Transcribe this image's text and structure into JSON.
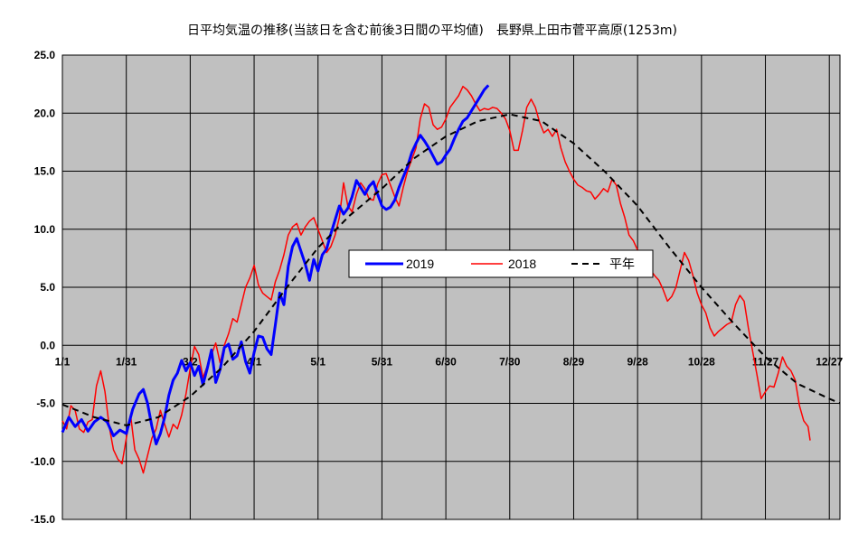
{
  "chart_data": {
    "type": "line",
    "title": "日平均気温の推移(当該日を含む前後3日間の平均値)　長野県上田市菅平高原(1253m)",
    "xlabel": "",
    "ylabel": "",
    "ylim": [
      -15,
      25
    ],
    "xlim": [
      1,
      366
    ],
    "yticks": [
      "25.0",
      "20.0",
      "15.0",
      "10.0",
      "5.0",
      "0.0",
      "-5.0",
      "-10.0",
      "-15.0"
    ],
    "xticks": [
      {
        "day": 1,
        "label": "1/1"
      },
      {
        "day": 31,
        "label": "1/31"
      },
      {
        "day": 61,
        "label": "3/2"
      },
      {
        "day": 91,
        "label": "4/1"
      },
      {
        "day": 121,
        "label": "5/1"
      },
      {
        "day": 151,
        "label": "5/31"
      },
      {
        "day": 181,
        "label": "6/30"
      },
      {
        "day": 211,
        "label": "7/30"
      },
      {
        "day": 241,
        "label": "8/29"
      },
      {
        "day": 271,
        "label": "9/28"
      },
      {
        "day": 301,
        "label": "10/28"
      },
      {
        "day": 331,
        "label": "11/27"
      },
      {
        "day": 361,
        "label": "12/27"
      }
    ],
    "grid": true,
    "legend_position": "center",
    "series": [
      {
        "name": "2019",
        "color": "#0000ff",
        "style": "solid",
        "points": [
          [
            1,
            -7.5
          ],
          [
            4,
            -6.2
          ],
          [
            7,
            -7.0
          ],
          [
            10,
            -6.4
          ],
          [
            13,
            -7.4
          ],
          [
            16,
            -6.6
          ],
          [
            19,
            -6.2
          ],
          [
            22,
            -6.6
          ],
          [
            25,
            -7.8
          ],
          [
            28,
            -7.3
          ],
          [
            31,
            -7.6
          ],
          [
            34,
            -5.5
          ],
          [
            37,
            -4.2
          ],
          [
            39,
            -3.8
          ],
          [
            41,
            -5.0
          ],
          [
            43,
            -7.0
          ],
          [
            45,
            -8.5
          ],
          [
            47,
            -7.6
          ],
          [
            49,
            -6.2
          ],
          [
            51,
            -4.3
          ],
          [
            53,
            -3.0
          ],
          [
            55,
            -2.4
          ],
          [
            57,
            -1.3
          ],
          [
            59,
            -2.2
          ],
          [
            61,
            -1.5
          ],
          [
            63,
            -2.6
          ],
          [
            65,
            -1.8
          ],
          [
            67,
            -3.4
          ],
          [
            69,
            -2.0
          ],
          [
            71,
            -0.4
          ],
          [
            73,
            -3.2
          ],
          [
            75,
            -2.1
          ],
          [
            77,
            -0.2
          ],
          [
            79,
            0.1
          ],
          [
            81,
            -1.2
          ],
          [
            83,
            -0.9
          ],
          [
            85,
            0.3
          ],
          [
            87,
            -1.4
          ],
          [
            89,
            -2.4
          ],
          [
            91,
            -0.6
          ],
          [
            93,
            0.8
          ],
          [
            95,
            0.7
          ],
          [
            97,
            -0.3
          ],
          [
            99,
            -0.8
          ],
          [
            101,
            1.8
          ],
          [
            103,
            4.5
          ],
          [
            105,
            3.5
          ],
          [
            107,
            6.8
          ],
          [
            109,
            8.5
          ],
          [
            111,
            9.2
          ],
          [
            113,
            8.1
          ],
          [
            115,
            7.0
          ],
          [
            117,
            5.6
          ],
          [
            119,
            7.4
          ],
          [
            121,
            6.4
          ],
          [
            123,
            7.8
          ],
          [
            125,
            8.3
          ],
          [
            127,
            9.6
          ],
          [
            129,
            10.8
          ],
          [
            131,
            12.0
          ],
          [
            133,
            11.3
          ],
          [
            135,
            11.8
          ],
          [
            137,
            12.8
          ],
          [
            139,
            14.2
          ],
          [
            141,
            13.6
          ],
          [
            143,
            13.0
          ],
          [
            145,
            13.7
          ],
          [
            147,
            14.1
          ],
          [
            149,
            13.0
          ],
          [
            151,
            12.0
          ],
          [
            153,
            11.7
          ],
          [
            155,
            11.9
          ],
          [
            157,
            12.5
          ],
          [
            159,
            13.6
          ],
          [
            161,
            14.5
          ],
          [
            163,
            15.4
          ],
          [
            165,
            16.6
          ],
          [
            167,
            17.4
          ],
          [
            169,
            18.1
          ],
          [
            171,
            17.6
          ],
          [
            173,
            17.0
          ],
          [
            175,
            16.3
          ],
          [
            177,
            15.6
          ],
          [
            179,
            15.8
          ],
          [
            181,
            16.4
          ],
          [
            183,
            16.9
          ],
          [
            185,
            17.8
          ],
          [
            187,
            18.6
          ],
          [
            189,
            19.3
          ],
          [
            191,
            19.6
          ],
          [
            193,
            20.2
          ],
          [
            195,
            20.8
          ],
          [
            197,
            21.4
          ],
          [
            199,
            22.0
          ],
          [
            201,
            22.4
          ]
        ]
      },
      {
        "name": "2018",
        "color": "#ff0000",
        "style": "solid",
        "points": [
          [
            1,
            -6.5
          ],
          [
            3,
            -7.2
          ],
          [
            5,
            -5.2
          ],
          [
            7,
            -5.6
          ],
          [
            9,
            -7.2
          ],
          [
            11,
            -7.5
          ],
          [
            13,
            -6.6
          ],
          [
            15,
            -6.4
          ],
          [
            17,
            -3.5
          ],
          [
            19,
            -2.2
          ],
          [
            21,
            -4.0
          ],
          [
            23,
            -7.0
          ],
          [
            25,
            -9.0
          ],
          [
            27,
            -9.8
          ],
          [
            29,
            -10.2
          ],
          [
            31,
            -8.0
          ],
          [
            33,
            -6.0
          ],
          [
            35,
            -9.0
          ],
          [
            37,
            -9.8
          ],
          [
            39,
            -11.0
          ],
          [
            41,
            -9.5
          ],
          [
            43,
            -8.0
          ],
          [
            45,
            -7.2
          ],
          [
            47,
            -5.6
          ],
          [
            49,
            -6.8
          ],
          [
            51,
            -7.9
          ],
          [
            53,
            -6.8
          ],
          [
            55,
            -7.2
          ],
          [
            57,
            -6.0
          ],
          [
            59,
            -4.2
          ],
          [
            61,
            -2.0
          ],
          [
            63,
            -0.1
          ],
          [
            65,
            -0.8
          ],
          [
            67,
            -2.8
          ],
          [
            69,
            -1.8
          ],
          [
            71,
            -0.8
          ],
          [
            73,
            0.2
          ],
          [
            75,
            -1.5
          ],
          [
            77,
            0.0
          ],
          [
            79,
            1.0
          ],
          [
            81,
            2.3
          ],
          [
            83,
            2.0
          ],
          [
            85,
            3.5
          ],
          [
            87,
            5.0
          ],
          [
            89,
            5.8
          ],
          [
            91,
            6.9
          ],
          [
            93,
            5.2
          ],
          [
            95,
            4.5
          ],
          [
            97,
            4.2
          ],
          [
            99,
            3.9
          ],
          [
            101,
            5.5
          ],
          [
            103,
            6.5
          ],
          [
            105,
            7.8
          ],
          [
            107,
            9.5
          ],
          [
            109,
            10.2
          ],
          [
            111,
            10.5
          ],
          [
            113,
            9.5
          ],
          [
            115,
            10.2
          ],
          [
            117,
            10.7
          ],
          [
            119,
            11.0
          ],
          [
            121,
            10.0
          ],
          [
            123,
            9.0
          ],
          [
            125,
            8.0
          ],
          [
            127,
            8.5
          ],
          [
            129,
            9.5
          ],
          [
            131,
            11.0
          ],
          [
            133,
            14.0
          ],
          [
            135,
            12.0
          ],
          [
            137,
            11.5
          ],
          [
            139,
            13.0
          ],
          [
            141,
            14.0
          ],
          [
            143,
            13.5
          ],
          [
            145,
            12.6
          ],
          [
            147,
            12.5
          ],
          [
            149,
            13.9
          ],
          [
            151,
            14.7
          ],
          [
            153,
            14.8
          ],
          [
            155,
            13.8
          ],
          [
            157,
            12.8
          ],
          [
            159,
            12.0
          ],
          [
            161,
            13.6
          ],
          [
            163,
            15.0
          ],
          [
            165,
            16.0
          ],
          [
            167,
            17.0
          ],
          [
            169,
            19.5
          ],
          [
            171,
            20.8
          ],
          [
            173,
            20.5
          ],
          [
            175,
            19.0
          ],
          [
            177,
            18.6
          ],
          [
            179,
            18.8
          ],
          [
            181,
            19.5
          ],
          [
            183,
            20.5
          ],
          [
            185,
            21.0
          ],
          [
            187,
            21.5
          ],
          [
            189,
            22.3
          ],
          [
            191,
            22.0
          ],
          [
            193,
            21.5
          ],
          [
            195,
            20.8
          ],
          [
            197,
            20.2
          ],
          [
            199,
            20.4
          ],
          [
            201,
            20.3
          ],
          [
            203,
            20.5
          ],
          [
            205,
            20.4
          ],
          [
            207,
            20.0
          ],
          [
            209,
            19.5
          ],
          [
            211,
            18.5
          ],
          [
            213,
            16.8
          ],
          [
            215,
            16.8
          ],
          [
            217,
            18.5
          ],
          [
            219,
            20.5
          ],
          [
            221,
            21.2
          ],
          [
            223,
            20.5
          ],
          [
            225,
            19.2
          ],
          [
            227,
            18.3
          ],
          [
            229,
            18.6
          ],
          [
            231,
            18.0
          ],
          [
            233,
            18.6
          ],
          [
            235,
            17.0
          ],
          [
            237,
            15.8
          ],
          [
            239,
            15.0
          ],
          [
            241,
            14.3
          ],
          [
            243,
            13.8
          ],
          [
            245,
            13.6
          ],
          [
            247,
            13.3
          ],
          [
            249,
            13.2
          ],
          [
            251,
            12.6
          ],
          [
            253,
            13.0
          ],
          [
            255,
            13.5
          ],
          [
            257,
            13.2
          ],
          [
            259,
            14.3
          ],
          [
            261,
            13.8
          ],
          [
            263,
            12.2
          ],
          [
            265,
            11.0
          ],
          [
            267,
            9.5
          ],
          [
            269,
            9.0
          ],
          [
            271,
            8.2
          ],
          [
            273,
            8.0
          ],
          [
            275,
            7.0
          ],
          [
            277,
            6.5
          ],
          [
            279,
            6.0
          ],
          [
            281,
            5.6
          ],
          [
            283,
            4.8
          ],
          [
            285,
            3.8
          ],
          [
            287,
            4.2
          ],
          [
            289,
            5.0
          ],
          [
            291,
            6.5
          ],
          [
            293,
            8.0
          ],
          [
            295,
            7.3
          ],
          [
            297,
            6.0
          ],
          [
            299,
            4.5
          ],
          [
            301,
            3.5
          ],
          [
            303,
            2.8
          ],
          [
            305,
            1.5
          ],
          [
            307,
            0.8
          ],
          [
            309,
            1.2
          ],
          [
            311,
            1.5
          ],
          [
            313,
            1.8
          ],
          [
            315,
            2.0
          ],
          [
            317,
            3.5
          ],
          [
            319,
            4.3
          ],
          [
            321,
            3.8
          ],
          [
            323,
            1.5
          ],
          [
            325,
            -0.5
          ],
          [
            327,
            -2.5
          ],
          [
            329,
            -4.6
          ],
          [
            331,
            -4.0
          ],
          [
            333,
            -3.5
          ],
          [
            335,
            -3.6
          ],
          [
            337,
            -2.4
          ],
          [
            339,
            -1.0
          ],
          [
            341,
            -1.8
          ],
          [
            343,
            -2.2
          ],
          [
            345,
            -3.0
          ],
          [
            347,
            -5.2
          ],
          [
            349,
            -6.5
          ],
          [
            351,
            -7.0
          ],
          [
            352,
            -8.2
          ]
        ]
      },
      {
        "name": "平年",
        "color": "#000000",
        "style": "dashed",
        "points": [
          [
            1,
            -5.1
          ],
          [
            16,
            -6.2
          ],
          [
            31,
            -6.9
          ],
          [
            46,
            -6.2
          ],
          [
            61,
            -4.4
          ],
          [
            76,
            -1.9
          ],
          [
            91,
            1.2
          ],
          [
            106,
            4.9
          ],
          [
            121,
            8.4
          ],
          [
            136,
            11.2
          ],
          [
            151,
            13.5
          ],
          [
            166,
            16.1
          ],
          [
            181,
            18.0
          ],
          [
            196,
            19.3
          ],
          [
            211,
            19.9
          ],
          [
            226,
            19.3
          ],
          [
            241,
            17.4
          ],
          [
            256,
            14.9
          ],
          [
            271,
            12.0
          ],
          [
            286,
            8.4
          ],
          [
            301,
            5.0
          ],
          [
            316,
            1.9
          ],
          [
            331,
            -1.0
          ],
          [
            346,
            -3.3
          ],
          [
            361,
            -4.6
          ],
          [
            366,
            -5.0
          ]
        ]
      }
    ]
  }
}
